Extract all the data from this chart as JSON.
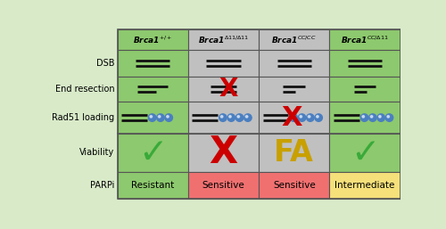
{
  "col_labels": [
    "Brca1$^{+/+}$",
    "Brca1$^{\\Delta11/\\Delta11}$",
    "Brca1$^{CC/CC}$",
    "Brca1$^{CC/\\Delta11}$"
  ],
  "row_labels": [
    "DSB",
    "End resection",
    "Rad51 loading",
    "Viability",
    "PARPi"
  ],
  "col_bg_top": [
    "#8dc96e",
    "#c0c0c0",
    "#c0c0c0",
    "#8dc96e"
  ],
  "col_bg_bot": [
    "#8dc96e",
    "#c0c0c0",
    "#c0c0c0",
    "#8dc96e"
  ],
  "viability_bg": [
    "#8dc96e",
    "#c0c0c0",
    "#c0c0c0",
    "#8dc96e"
  ],
  "parpi_bg": [
    "#8dc96e",
    "#f07070",
    "#f07070",
    "#f5e07a"
  ],
  "parpi_labels": [
    "Resistant",
    "Sensitive",
    "Sensitive",
    "Intermediate"
  ],
  "header_bg": [
    "#8dc96e",
    "#c0c0c0",
    "#c0c0c0",
    "#8dc96e"
  ],
  "figure_bg": "#d8eac8",
  "line_color": "#111111",
  "circle_color": "#4a7fc1",
  "x_mark_color": "#cc0000",
  "check_color": "#3aaa3a",
  "fa_color": "#c8a000",
  "border_color": "#555555",
  "grid_color": "#555555"
}
